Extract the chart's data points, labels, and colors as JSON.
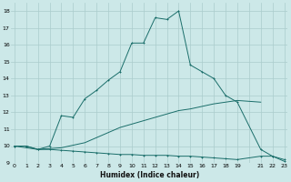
{
  "xlabel": "Humidex (Indice chaleur)",
  "bg_color": "#cce8e8",
  "grid_color": "#aacccc",
  "line_color": "#1a6e6a",
  "line1_x": [
    0,
    1,
    2,
    3,
    4,
    5,
    6,
    7,
    8,
    9,
    10,
    11,
    12,
    13,
    14,
    15,
    16,
    17,
    18,
    19,
    21,
    22,
    23
  ],
  "line1_y": [
    10.0,
    10.0,
    9.8,
    9.8,
    9.75,
    9.7,
    9.65,
    9.6,
    9.55,
    9.5,
    9.5,
    9.45,
    9.45,
    9.45,
    9.4,
    9.4,
    9.35,
    9.3,
    9.25,
    9.2,
    9.4,
    9.4,
    9.1
  ],
  "line2_x": [
    0,
    2,
    3,
    4,
    5,
    6,
    7,
    8,
    9,
    10,
    11,
    12,
    13,
    14,
    15,
    16,
    17,
    18,
    19,
    21
  ],
  "line2_y": [
    10.0,
    9.8,
    9.85,
    9.9,
    10.05,
    10.2,
    10.5,
    10.8,
    11.1,
    11.3,
    11.5,
    11.7,
    11.9,
    12.1,
    12.2,
    12.35,
    12.5,
    12.6,
    12.7,
    12.6
  ],
  "line3_x": [
    0,
    1,
    2,
    3,
    4,
    5,
    6,
    7,
    8,
    9,
    10,
    11,
    12,
    13,
    14,
    15,
    16,
    17,
    18,
    19,
    21,
    22,
    23
  ],
  "line3_y": [
    10.0,
    10.0,
    9.8,
    10.0,
    11.8,
    11.7,
    12.8,
    13.3,
    13.9,
    14.4,
    16.1,
    16.1,
    17.6,
    17.5,
    18.0,
    14.8,
    14.4,
    14.0,
    13.0,
    12.6,
    9.8,
    9.4,
    9.2
  ],
  "ylim": [
    9,
    18.5
  ],
  "xlim": [
    -0.3,
    23.3
  ],
  "yticks": [
    9,
    10,
    11,
    12,
    13,
    14,
    15,
    16,
    17,
    18
  ],
  "xtick_labels": [
    "0",
    "1",
    "2",
    "3",
    "4",
    "5",
    "6",
    "7",
    "8",
    "9",
    "10",
    "11",
    "12",
    "13",
    "14",
    "15",
    "16",
    "17",
    "18",
    "19",
    "",
    "21",
    "22",
    "23"
  ],
  "xtick_positions": [
    0,
    1,
    2,
    3,
    4,
    5,
    6,
    7,
    8,
    9,
    10,
    11,
    12,
    13,
    14,
    15,
    16,
    17,
    18,
    19,
    20,
    21,
    22,
    23
  ]
}
